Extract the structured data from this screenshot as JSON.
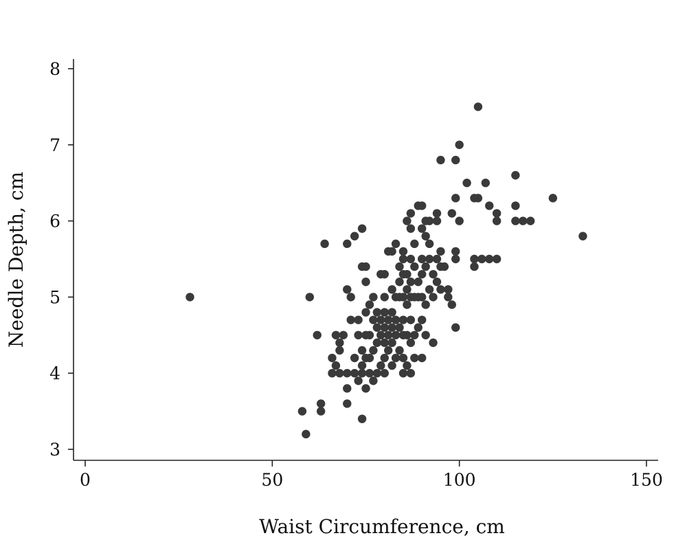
{
  "chart_data": {
    "type": "scatter",
    "title": "",
    "xlabel": "Waist Circumference, cm",
    "ylabel": "Needle Depth, cm",
    "xlim": [
      0,
      150
    ],
    "ylim": [
      3,
      8
    ],
    "xticks": [
      0,
      50,
      100,
      150
    ],
    "yticks": [
      3,
      4,
      5,
      6,
      7,
      8
    ],
    "xtick_labels": [
      "0",
      "50",
      "100",
      "150"
    ],
    "ytick_labels": [
      "3",
      "4",
      "5",
      "6",
      "7",
      "8"
    ],
    "grid": false,
    "legend": false,
    "marker_color": "#3a3a3a",
    "series": [
      {
        "points": [
          [
            28,
            5.0
          ],
          [
            58,
            3.5
          ],
          [
            59,
            3.2
          ],
          [
            60,
            5.0
          ],
          [
            62,
            4.5
          ],
          [
            63,
            3.6
          ],
          [
            63,
            3.5
          ],
          [
            64,
            5.7
          ],
          [
            66,
            4.2
          ],
          [
            66,
            4.0
          ],
          [
            67,
            4.1
          ],
          [
            67,
            4.5
          ],
          [
            68,
            4.4
          ],
          [
            68,
            4.0
          ],
          [
            68,
            4.3
          ],
          [
            69,
            4.5
          ],
          [
            70,
            3.8
          ],
          [
            70,
            3.6
          ],
          [
            70,
            4.0
          ],
          [
            70,
            5.1
          ],
          [
            70,
            5.7
          ],
          [
            71,
            4.7
          ],
          [
            71,
            5.0
          ],
          [
            72,
            4.2
          ],
          [
            72,
            4.0
          ],
          [
            72,
            5.8
          ],
          [
            73,
            3.9
          ],
          [
            73,
            4.7
          ],
          [
            73,
            4.5
          ],
          [
            74,
            3.4
          ],
          [
            74,
            4.0
          ],
          [
            74,
            4.1
          ],
          [
            74,
            4.3
          ],
          [
            74,
            5.4
          ],
          [
            74,
            5.9
          ],
          [
            75,
            3.8
          ],
          [
            75,
            4.2
          ],
          [
            75,
            4.5
          ],
          [
            75,
            4.8
          ],
          [
            75,
            5.2
          ],
          [
            75,
            5.4
          ],
          [
            76,
            4.0
          ],
          [
            76,
            4.2
          ],
          [
            76,
            4.5
          ],
          [
            76,
            4.9
          ],
          [
            77,
            3.9
          ],
          [
            77,
            4.3
          ],
          [
            77,
            4.7
          ],
          [
            77,
            5.0
          ],
          [
            78,
            4.0
          ],
          [
            78,
            4.4
          ],
          [
            78,
            4.6
          ],
          [
            78,
            4.8
          ],
          [
            79,
            4.1
          ],
          [
            79,
            4.5
          ],
          [
            79,
            4.7
          ],
          [
            79,
            5.3
          ],
          [
            80,
            4.0
          ],
          [
            80,
            4.2
          ],
          [
            80,
            4.4
          ],
          [
            80,
            4.6
          ],
          [
            80,
            4.8
          ],
          [
            80,
            5.0
          ],
          [
            80,
            5.3
          ],
          [
            81,
            4.3
          ],
          [
            81,
            4.5
          ],
          [
            81,
            4.7
          ],
          [
            81,
            5.6
          ],
          [
            82,
            4.1
          ],
          [
            82,
            4.4
          ],
          [
            82,
            4.6
          ],
          [
            82,
            4.8
          ],
          [
            82,
            5.1
          ],
          [
            82,
            5.6
          ],
          [
            83,
            4.2
          ],
          [
            83,
            4.5
          ],
          [
            83,
            4.7
          ],
          [
            83,
            5.0
          ],
          [
            83,
            5.7
          ],
          [
            84,
            4.3
          ],
          [
            84,
            4.6
          ],
          [
            84,
            5.0
          ],
          [
            84,
            5.2
          ],
          [
            84,
            5.4
          ],
          [
            85,
            4.0
          ],
          [
            85,
            4.2
          ],
          [
            85,
            4.5
          ],
          [
            85,
            4.7
          ],
          [
            85,
            5.0
          ],
          [
            85,
            5.3
          ],
          [
            85,
            5.5
          ],
          [
            85,
            5.6
          ],
          [
            86,
            4.1
          ],
          [
            86,
            4.5
          ],
          [
            86,
            4.9
          ],
          [
            86,
            5.1
          ],
          [
            86,
            5.3
          ],
          [
            86,
            6.0
          ],
          [
            87,
            4.0
          ],
          [
            87,
            4.4
          ],
          [
            87,
            4.7
          ],
          [
            87,
            5.0
          ],
          [
            87,
            5.2
          ],
          [
            87,
            5.5
          ],
          [
            87,
            5.9
          ],
          [
            87,
            6.1
          ],
          [
            88,
            4.2
          ],
          [
            88,
            4.5
          ],
          [
            88,
            5.0
          ],
          [
            88,
            5.4
          ],
          [
            88,
            5.7
          ],
          [
            89,
            4.6
          ],
          [
            89,
            5.0
          ],
          [
            89,
            5.2
          ],
          [
            89,
            6.2
          ],
          [
            90,
            4.2
          ],
          [
            90,
            4.7
          ],
          [
            90,
            5.0
          ],
          [
            90,
            5.3
          ],
          [
            90,
            5.5
          ],
          [
            90,
            5.9
          ],
          [
            90,
            6.2
          ],
          [
            91,
            4.5
          ],
          [
            91,
            4.9
          ],
          [
            91,
            5.4
          ],
          [
            91,
            5.8
          ],
          [
            91,
            6.0
          ],
          [
            92,
            5.1
          ],
          [
            92,
            5.5
          ],
          [
            92,
            5.7
          ],
          [
            92,
            6.0
          ],
          [
            93,
            4.4
          ],
          [
            93,
            5.0
          ],
          [
            93,
            5.3
          ],
          [
            94,
            5.2
          ],
          [
            94,
            5.5
          ],
          [
            94,
            6.0
          ],
          [
            94,
            6.1
          ],
          [
            95,
            5.1
          ],
          [
            95,
            5.4
          ],
          [
            95,
            5.6
          ],
          [
            95,
            6.8
          ],
          [
            96,
            5.4
          ],
          [
            97,
            5.0
          ],
          [
            97,
            5.1
          ],
          [
            98,
            4.9
          ],
          [
            98,
            6.1
          ],
          [
            99,
            4.6
          ],
          [
            99,
            5.5
          ],
          [
            99,
            5.6
          ],
          [
            99,
            6.3
          ],
          [
            99,
            6.8
          ],
          [
            100,
            6.0
          ],
          [
            100,
            7.0
          ],
          [
            102,
            6.5
          ],
          [
            104,
            5.4
          ],
          [
            104,
            5.5
          ],
          [
            104,
            6.3
          ],
          [
            105,
            6.3
          ],
          [
            105,
            7.5
          ],
          [
            106,
            5.5
          ],
          [
            107,
            6.5
          ],
          [
            108,
            5.5
          ],
          [
            108,
            6.2
          ],
          [
            110,
            5.5
          ],
          [
            110,
            6.0
          ],
          [
            110,
            6.1
          ],
          [
            115,
            6.0
          ],
          [
            115,
            6.2
          ],
          [
            115,
            6.6
          ],
          [
            117,
            6.0
          ],
          [
            119,
            6.0
          ],
          [
            125,
            6.3
          ],
          [
            133,
            5.8
          ]
        ]
      }
    ]
  }
}
